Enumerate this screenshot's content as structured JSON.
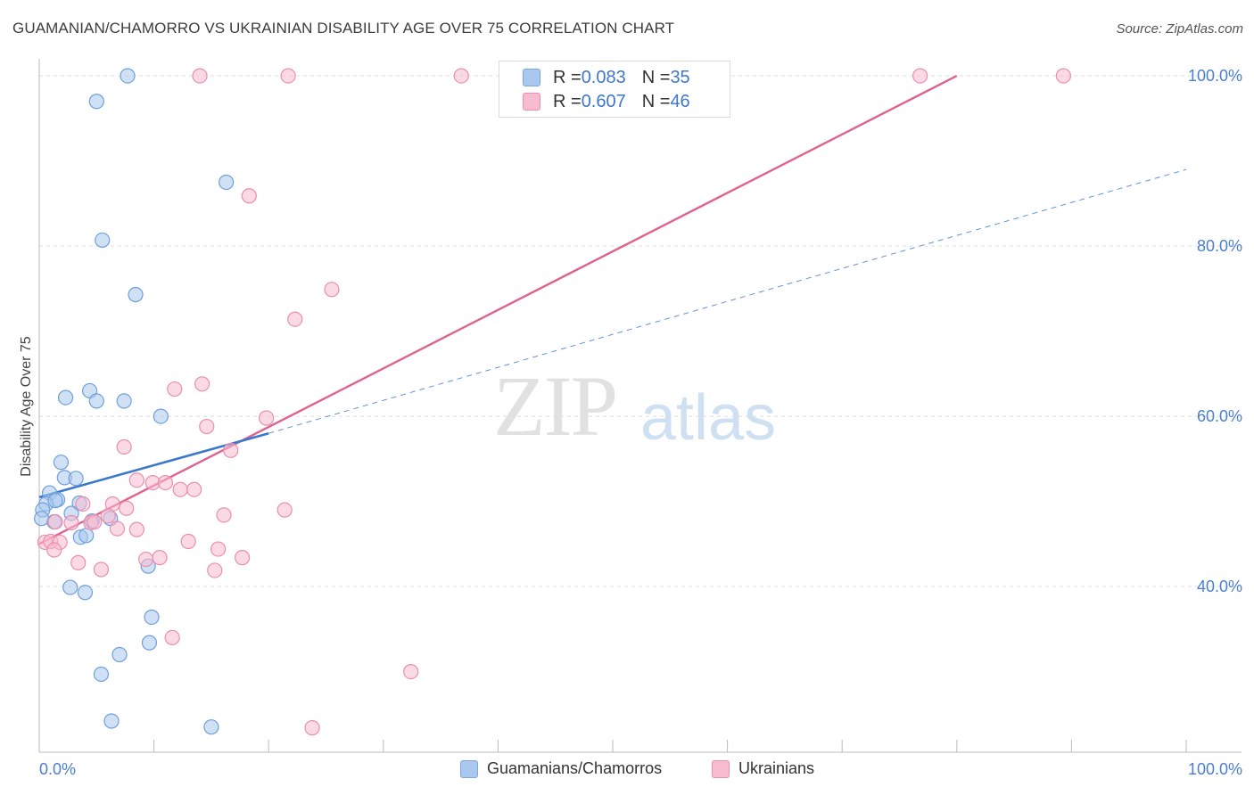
{
  "title": "GUAMANIAN/CHAMORRO VS UKRAINIAN DISABILITY AGE OVER 75 CORRELATION CHART",
  "source": "Source: ZipAtlas.com",
  "watermark": {
    "zip": "ZIP",
    "atlas": "atlas"
  },
  "legend": {
    "rows": [
      {
        "r_label": "R = ",
        "r_value": "0.083",
        "n_label": "N = ",
        "n_value": "35",
        "color": "#aac8ef",
        "border": "#7aa7e0"
      },
      {
        "r_label": "R = ",
        "r_value": "0.607",
        "n_label": "N = ",
        "n_value": "46",
        "color": "#f7bcd0",
        "border": "#ea8fae"
      }
    ]
  },
  "bottom_legend": [
    {
      "label": "Guamanians/Chamorros",
      "color": "#aac8ef",
      "border": "#7aa7e0"
    },
    {
      "label": "Ukrainians",
      "color": "#f7bcd0",
      "border": "#ea8fae"
    }
  ],
  "chart_data": {
    "type": "scatter",
    "title": "GUAMANIAN/CHAMORRO VS UKRAINIAN DISABILITY AGE OVER 75 CORRELATION CHART",
    "xlabel": "",
    "ylabel": "Disability Age Over 75",
    "xlim": [
      0,
      100
    ],
    "ylim": [
      22,
      102
    ],
    "x_tick_labels": [
      {
        "value": 0,
        "label": "0.0%"
      },
      {
        "value": 100,
        "label": "100.0%"
      }
    ],
    "y_tick_labels": [
      {
        "value": 40,
        "label": "40.0%"
      },
      {
        "value": 60,
        "label": "60.0%"
      },
      {
        "value": 80,
        "label": "80.0%"
      },
      {
        "value": 100,
        "label": "100.0%"
      }
    ],
    "y_gridlines": [
      40,
      60,
      80,
      100
    ],
    "series": [
      {
        "name": "Guamanians/Chamorros",
        "color": "#aac8ef",
        "stroke": "#6f9fdc",
        "trend_color": "#3a78cc",
        "trend": {
          "x0": 0,
          "y0": 50.5,
          "x1": 20,
          "y1": 58.0,
          "dash_to_x": 100,
          "dash_to_y": 89.0
        },
        "points": [
          [
            7.7,
            100
          ],
          [
            5.0,
            97
          ],
          [
            16.3,
            87.5
          ],
          [
            5.5,
            80.7
          ],
          [
            8.4,
            74.3
          ],
          [
            4.4,
            63
          ],
          [
            2.3,
            62.2
          ],
          [
            5.0,
            61.8
          ],
          [
            7.4,
            61.8
          ],
          [
            10.6,
            60
          ],
          [
            1.9,
            54.6
          ],
          [
            2.2,
            52.8
          ],
          [
            3.2,
            52.7
          ],
          [
            0.9,
            51.0
          ],
          [
            1.6,
            50.2
          ],
          [
            0.6,
            49.7
          ],
          [
            1.4,
            50.1
          ],
          [
            3.5,
            49.8
          ],
          [
            0.3,
            49.0
          ],
          [
            2.8,
            48.6
          ],
          [
            1.3,
            47.6
          ],
          [
            4.6,
            47.7
          ],
          [
            6.2,
            48.0
          ],
          [
            3.6,
            45.8
          ],
          [
            4.1,
            46.0
          ],
          [
            9.5,
            42.4
          ],
          [
            2.7,
            39.9
          ],
          [
            4.0,
            39.3
          ],
          [
            9.8,
            36.4
          ],
          [
            9.6,
            33.4
          ],
          [
            7.0,
            32.0
          ],
          [
            5.4,
            29.7
          ],
          [
            6.3,
            24.2
          ],
          [
            15.0,
            23.5
          ],
          [
            0.2,
            48.0
          ]
        ]
      },
      {
        "name": "Ukrainians",
        "color": "#f7bcd0",
        "stroke": "#e98fad",
        "trend_color": "#e0628e",
        "trend": {
          "x0": 0,
          "y0": 45.0,
          "x1": 80,
          "y1": 100.0
        },
        "points": [
          [
            14,
            100
          ],
          [
            21.7,
            100
          ],
          [
            36.8,
            100
          ],
          [
            76.8,
            100
          ],
          [
            89.3,
            100
          ],
          [
            18.3,
            85.9
          ],
          [
            25.5,
            74.9
          ],
          [
            22.3,
            71.4
          ],
          [
            14.2,
            63.8
          ],
          [
            11.8,
            63.2
          ],
          [
            19.8,
            59.8
          ],
          [
            14.6,
            58.8
          ],
          [
            16.7,
            56.0
          ],
          [
            7.4,
            56.4
          ],
          [
            8.5,
            52.5
          ],
          [
            9.9,
            52.2
          ],
          [
            11.0,
            52.2
          ],
          [
            12.3,
            51.4
          ],
          [
            13.5,
            51.4
          ],
          [
            6.4,
            49.7
          ],
          [
            7.6,
            49.2
          ],
          [
            3.8,
            49.7
          ],
          [
            16.1,
            48.4
          ],
          [
            21.4,
            49.0
          ],
          [
            6.0,
            48.3
          ],
          [
            1.4,
            47.6
          ],
          [
            2.8,
            47.5
          ],
          [
            4.5,
            47.5
          ],
          [
            4.8,
            47.6
          ],
          [
            6.8,
            46.8
          ],
          [
            8.5,
            46.7
          ],
          [
            0.5,
            45.2
          ],
          [
            1.0,
            45.3
          ],
          [
            1.8,
            45.2
          ],
          [
            13.0,
            45.3
          ],
          [
            1.3,
            44.3
          ],
          [
            15.6,
            44.4
          ],
          [
            9.3,
            43.2
          ],
          [
            10.5,
            43.4
          ],
          [
            17.7,
            43.4
          ],
          [
            3.4,
            42.8
          ],
          [
            5.4,
            42.0
          ],
          [
            15.3,
            41.9
          ],
          [
            11.6,
            34.0
          ],
          [
            32.4,
            30.0
          ],
          [
            23.8,
            23.4
          ]
        ]
      }
    ]
  }
}
